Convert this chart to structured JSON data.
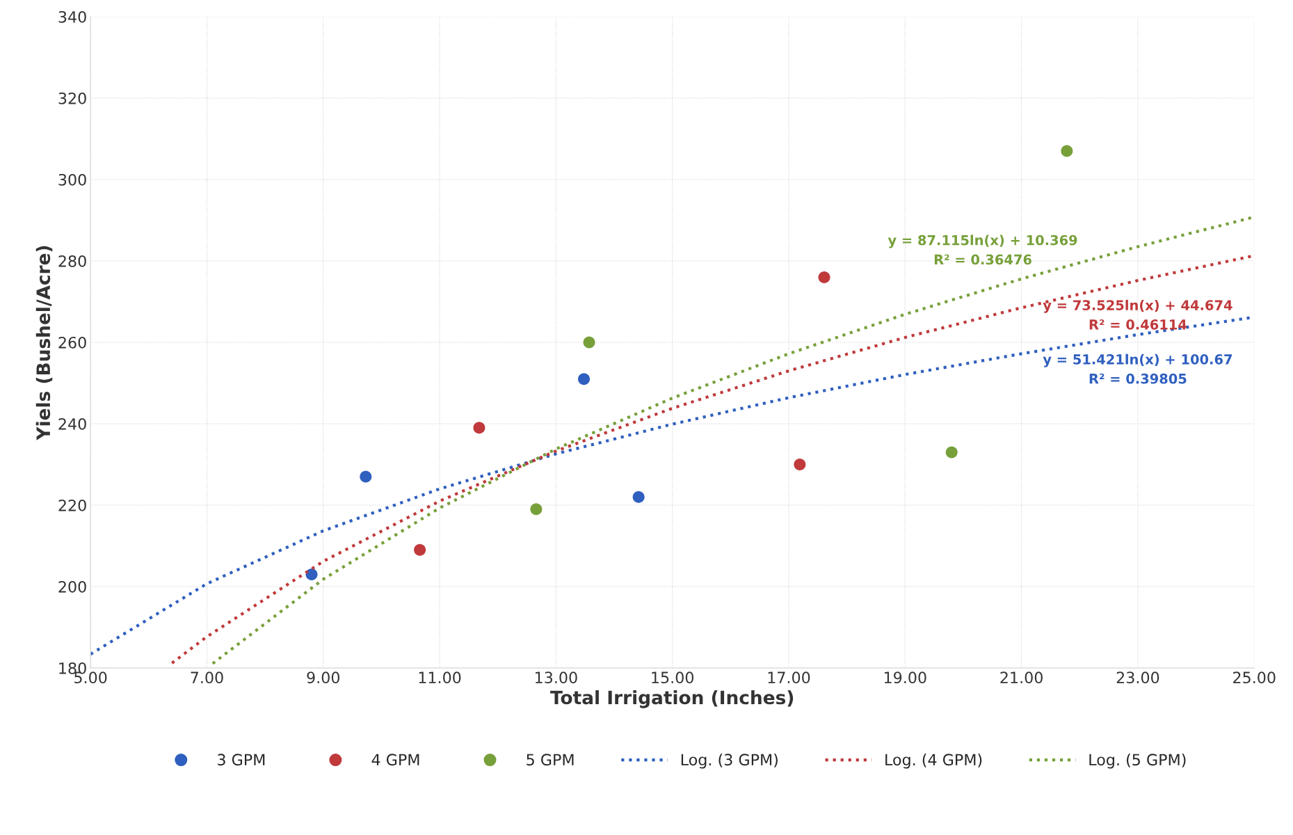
{
  "chart_data": {
    "type": "scatter",
    "xlabel": "Total Irrigation (Inches)",
    "ylabel": "Yiels (Bushel/Acre)",
    "xlim": [
      5,
      25
    ],
    "ylim": [
      180,
      340
    ],
    "xticks": [
      {
        "value": 5,
        "label": "5.00"
      },
      {
        "value": 7,
        "label": "7.00"
      },
      {
        "value": 9,
        "label": "9.00"
      },
      {
        "value": 11,
        "label": "11.00"
      },
      {
        "value": 13,
        "label": "13.00"
      },
      {
        "value": 15,
        "label": "15.00"
      },
      {
        "value": 17,
        "label": "17.00"
      },
      {
        "value": 19,
        "label": "19.00"
      },
      {
        "value": 21,
        "label": "21.00"
      },
      {
        "value": 23,
        "label": "23.00"
      },
      {
        "value": 25,
        "label": "25.00"
      }
    ],
    "yticks": [
      180,
      200,
      220,
      240,
      260,
      280,
      300,
      320,
      340
    ],
    "grid": true,
    "legend": "bottom",
    "series": [
      {
        "name": "3 GPM",
        "marker": "circle",
        "color": "#2f5fbf",
        "x": [
          8.8,
          9.73,
          13.48,
          14.42
        ],
        "values": [
          203,
          227,
          251,
          222
        ]
      },
      {
        "name": "4 GPM",
        "marker": "circle",
        "color": "#c0393b",
        "x": [
          10.66,
          11.68,
          17.19,
          17.61
        ],
        "values": [
          209,
          239,
          230,
          276
        ]
      },
      {
        "name": "5 GPM",
        "marker": "circle",
        "color": "#77a03a",
        "x": [
          12.66,
          13.57,
          19.8,
          21.78
        ],
        "values": [
          219,
          260,
          233,
          307
        ]
      },
      {
        "name": "Log. (3 GPM)",
        "type": "line",
        "line_style": "dotted",
        "marker": "none",
        "color": "#2f5fbf",
        "x": [
          5,
          7,
          9,
          11,
          13,
          15,
          17,
          19,
          21,
          23,
          25
        ],
        "values": [
          183.4,
          200.7,
          213.7,
          224.0,
          232.6,
          239.9,
          246.4,
          252.1,
          257.2,
          261.9,
          266.2
        ]
      },
      {
        "name": "Log. (4 GPM)",
        "type": "line",
        "line_style": "dotted",
        "marker": "none",
        "color": "#c0393b",
        "x": [
          6.4,
          7,
          9,
          11,
          13,
          15,
          17,
          19,
          21,
          23,
          25
        ],
        "values": [
          181.2,
          187.7,
          206.2,
          221.0,
          233.3,
          243.8,
          253.0,
          261.2,
          268.5,
          275.2,
          281.3
        ]
      },
      {
        "name": "Log. (5 GPM)",
        "type": "line",
        "line_style": "dotted",
        "marker": "none",
        "color": "#77a03a",
        "x": [
          7.1,
          9,
          11,
          13,
          15,
          17,
          19,
          21,
          23,
          25
        ],
        "values": [
          181.1,
          201.8,
          219.3,
          233.8,
          246.3,
          257.2,
          266.9,
          275.6,
          283.5,
          290.8
        ]
      }
    ],
    "annotations": [
      "y = 87.115ln(x) + 10.369\nR² = 0.36476",
      "y = 73.525ln(x) + 44.674\nR² = 0.46114",
      "y = 51.421ln(x) + 100.67\nR² = 0.39805"
    ]
  }
}
